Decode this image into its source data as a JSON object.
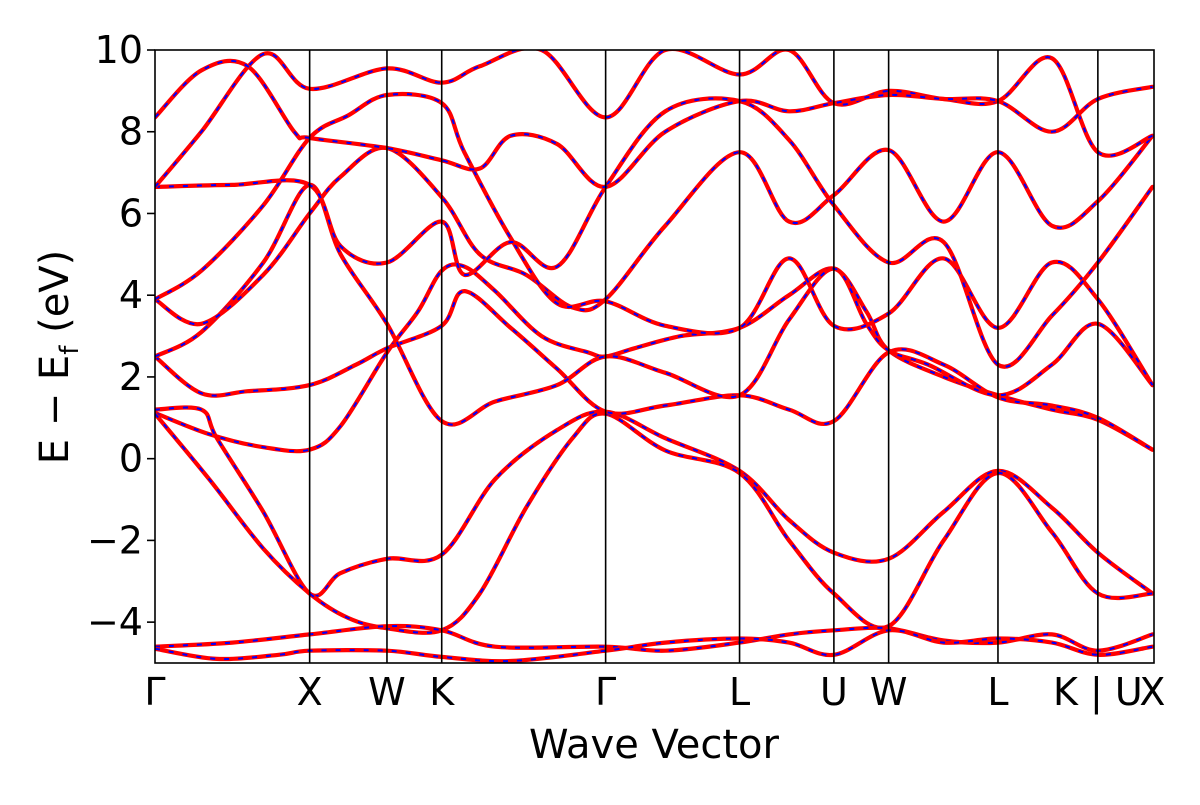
{
  "chart_data": {
    "type": "line",
    "title": "",
    "xlabel": "Wave Vector",
    "ylabel": "E − E",
    "ylabel_sub": "f",
    "ylabel_unit": " (eV)",
    "ylim": [
      -5,
      10
    ],
    "yticks": [
      -4,
      -2,
      0,
      2,
      4,
      6,
      8,
      10
    ],
    "ytick_labels": [
      "−4",
      "−2",
      "0",
      "2",
      "4",
      "6",
      "8",
      "10"
    ],
    "xlim": [
      0,
      6.46
    ],
    "kpoints": [
      {
        "label": "Γ",
        "x": 0.0
      },
      {
        "label": "X",
        "x": 1.0
      },
      {
        "label": "W",
        "x": 1.5
      },
      {
        "label": "K",
        "x": 1.854
      },
      {
        "label": "Γ",
        "x": 2.914
      },
      {
        "label": "L",
        "x": 3.78
      },
      {
        "label": "U",
        "x": 4.39
      },
      {
        "label": "W",
        "x": 4.744
      },
      {
        "label": "L",
        "x": 5.451
      },
      {
        "label": "K | U",
        "x": 6.097
      },
      {
        "label": "X",
        "x": 6.45
      }
    ],
    "colors": {
      "band": "#ff0000",
      "overlay": "#0000ff",
      "vline": "#000000"
    },
    "series": [
      {
        "values": [
          [
            0,
            1.12
          ],
          [
            0.35,
            0.6
          ],
          [
            0.7,
            0.28
          ],
          [
            1.0,
            0.22
          ],
          [
            1.2,
            0.8
          ],
          [
            1.5,
            2.6
          ],
          [
            1.7,
            3.6
          ],
          [
            1.854,
            4.6
          ],
          [
            2.0,
            4.7
          ],
          [
            2.2,
            4.1
          ],
          [
            2.5,
            3.0
          ],
          [
            2.8,
            2.6
          ],
          [
            2.914,
            2.5
          ],
          [
            3.1,
            2.7
          ],
          [
            3.4,
            3.0
          ],
          [
            3.78,
            3.2
          ],
          [
            4.1,
            4.0
          ],
          [
            4.39,
            4.65
          ],
          [
            4.6,
            3.6
          ],
          [
            4.744,
            2.65
          ],
          [
            5.1,
            2.0
          ],
          [
            5.451,
            1.55
          ],
          [
            5.8,
            1.2
          ],
          [
            6.097,
            0.95
          ],
          [
            6.45,
            0.22
          ]
        ]
      },
      {
        "values": [
          [
            0,
            1.2
          ],
          [
            0.3,
            1.2
          ],
          [
            0.4,
            0.5
          ],
          [
            0.7,
            -1.3
          ],
          [
            1.0,
            -3.3
          ],
          [
            1.2,
            -2.8
          ],
          [
            1.5,
            -2.45
          ],
          [
            1.854,
            -2.35
          ],
          [
            2.2,
            -0.5
          ],
          [
            2.6,
            0.7
          ],
          [
            2.914,
            1.15
          ],
          [
            3.3,
            0.5
          ],
          [
            3.78,
            -0.3
          ],
          [
            4.1,
            -1.5
          ],
          [
            4.39,
            -2.3
          ],
          [
            4.744,
            -2.45
          ],
          [
            5.1,
            -1.3
          ],
          [
            5.451,
            -0.3
          ],
          [
            5.8,
            -1.2
          ],
          [
            6.097,
            -2.3
          ],
          [
            6.45,
            -3.3
          ]
        ]
      },
      {
        "values": [
          [
            0,
            1.1
          ],
          [
            0.35,
            -0.5
          ],
          [
            0.7,
            -2.2
          ],
          [
            1.0,
            -3.3
          ],
          [
            1.25,
            -3.9
          ],
          [
            1.5,
            -4.15
          ],
          [
            1.854,
            -4.2
          ],
          [
            2.1,
            -3.3
          ],
          [
            2.4,
            -1.2
          ],
          [
            2.7,
            0.5
          ],
          [
            2.914,
            1.1
          ],
          [
            3.3,
            0.2
          ],
          [
            3.78,
            -0.35
          ],
          [
            4.1,
            -2.0
          ],
          [
            4.39,
            -3.3
          ],
          [
            4.744,
            -4.1
          ],
          [
            5.1,
            -2.0
          ],
          [
            5.451,
            -0.35
          ],
          [
            5.8,
            -1.8
          ],
          [
            6.097,
            -3.3
          ],
          [
            6.45,
            -3.3
          ]
        ]
      },
      {
        "values": [
          [
            0,
            2.5
          ],
          [
            0.3,
            1.6
          ],
          [
            0.6,
            1.65
          ],
          [
            1.0,
            1.8
          ],
          [
            1.3,
            2.3
          ],
          [
            1.5,
            2.7
          ],
          [
            1.854,
            3.25
          ],
          [
            2.0,
            4.1
          ],
          [
            2.3,
            3.2
          ],
          [
            2.6,
            2.2
          ],
          [
            2.914,
            1.15
          ],
          [
            3.3,
            1.3
          ],
          [
            3.78,
            1.55
          ],
          [
            4.1,
            1.2
          ],
          [
            4.39,
            0.92
          ],
          [
            4.744,
            2.6
          ],
          [
            5.1,
            2.3
          ],
          [
            5.451,
            1.5
          ],
          [
            5.8,
            1.3
          ],
          [
            6.097,
            1.0
          ],
          [
            6.45,
            0.22
          ]
        ]
      },
      {
        "values": [
          [
            0,
            2.5
          ],
          [
            0.3,
            3.1
          ],
          [
            0.7,
            4.8
          ],
          [
            1.0,
            6.7
          ],
          [
            1.2,
            5.0
          ],
          [
            1.5,
            3.3
          ],
          [
            1.854,
            0.92
          ],
          [
            2.2,
            1.4
          ],
          [
            2.6,
            1.8
          ],
          [
            2.914,
            2.5
          ],
          [
            3.3,
            2.1
          ],
          [
            3.78,
            1.55
          ],
          [
            4.1,
            3.4
          ],
          [
            4.39,
            4.65
          ],
          [
            4.6,
            3.3
          ],
          [
            4.744,
            2.65
          ],
          [
            5.0,
            2.3
          ],
          [
            5.451,
            1.55
          ],
          [
            5.8,
            2.3
          ],
          [
            6.097,
            3.3
          ],
          [
            6.45,
            1.8
          ]
        ]
      },
      {
        "values": [
          [
            0,
            3.9
          ],
          [
            0.3,
            3.3
          ],
          [
            0.7,
            4.5
          ],
          [
            1.0,
            6.0
          ],
          [
            1.2,
            6.9
          ],
          [
            1.5,
            7.6
          ],
          [
            1.854,
            6.4
          ],
          [
            2.1,
            5.0
          ],
          [
            2.4,
            4.5
          ],
          [
            2.7,
            3.7
          ],
          [
            2.914,
            3.9
          ],
          [
            3.3,
            5.7
          ],
          [
            3.78,
            7.5
          ],
          [
            4.1,
            5.8
          ],
          [
            4.39,
            6.45
          ],
          [
            4.744,
            7.55
          ],
          [
            5.1,
            5.8
          ],
          [
            5.451,
            7.5
          ],
          [
            5.8,
            5.7
          ],
          [
            6.097,
            6.3
          ],
          [
            6.45,
            7.9
          ]
        ]
      },
      {
        "values": [
          [
            0,
            3.9
          ],
          [
            0.3,
            4.6
          ],
          [
            0.7,
            6.2
          ],
          [
            1.0,
            7.85
          ],
          [
            1.25,
            8.4
          ],
          [
            1.5,
            8.9
          ],
          [
            1.854,
            8.7
          ],
          [
            2.0,
            7.5
          ],
          [
            2.3,
            5.4
          ],
          [
            2.6,
            3.8
          ],
          [
            2.914,
            3.85
          ],
          [
            3.3,
            3.25
          ],
          [
            3.78,
            3.2
          ],
          [
            4.1,
            4.9
          ],
          [
            4.39,
            3.25
          ],
          [
            4.744,
            3.55
          ],
          [
            5.1,
            4.9
          ],
          [
            5.451,
            3.2
          ],
          [
            5.8,
            4.8
          ],
          [
            6.097,
            3.9
          ],
          [
            6.45,
            1.8
          ]
        ]
      },
      {
        "values": [
          [
            0,
            6.65
          ],
          [
            0.5,
            6.7
          ],
          [
            1.0,
            6.7
          ],
          [
            1.2,
            5.2
          ],
          [
            1.5,
            4.8
          ],
          [
            1.854,
            5.8
          ],
          [
            2.0,
            4.5
          ],
          [
            2.3,
            5.3
          ],
          [
            2.6,
            4.7
          ],
          [
            2.914,
            6.65
          ],
          [
            3.3,
            8.5
          ],
          [
            3.78,
            8.75
          ],
          [
            4.1,
            7.8
          ],
          [
            4.39,
            6.2
          ],
          [
            4.744,
            4.8
          ],
          [
            5.1,
            5.3
          ],
          [
            5.451,
            2.3
          ],
          [
            5.8,
            3.5
          ],
          [
            6.097,
            4.8
          ],
          [
            6.45,
            6.65
          ]
        ]
      },
      {
        "values": [
          [
            0,
            6.65
          ],
          [
            0.3,
            8.0
          ],
          [
            0.7,
            9.9
          ],
          [
            1.0,
            9.05
          ],
          [
            1.5,
            9.55
          ],
          [
            1.854,
            9.2
          ],
          [
            2.1,
            9.6
          ],
          [
            2.5,
            10.0
          ],
          [
            2.914,
            8.35
          ],
          [
            3.3,
            10.0
          ],
          [
            3.78,
            9.4
          ],
          [
            4.1,
            10.0
          ],
          [
            4.39,
            8.7
          ],
          [
            4.744,
            9.0
          ],
          [
            5.1,
            8.8
          ],
          [
            5.451,
            8.75
          ],
          [
            5.8,
            9.8
          ],
          [
            6.097,
            7.5
          ],
          [
            6.45,
            7.9
          ]
        ]
      },
      {
        "values": [
          [
            0,
            8.35
          ],
          [
            0.3,
            9.5
          ],
          [
            0.6,
            9.6
          ],
          [
            0.9,
            8.0
          ],
          [
            1.0,
            7.85
          ],
          [
            1.5,
            7.6
          ],
          [
            1.854,
            7.3
          ],
          [
            2.1,
            7.1
          ],
          [
            2.3,
            7.9
          ],
          [
            2.6,
            7.7
          ],
          [
            2.914,
            6.65
          ],
          [
            3.3,
            8.0
          ],
          [
            3.78,
            8.75
          ],
          [
            4.1,
            8.5
          ],
          [
            4.39,
            8.7
          ],
          [
            4.744,
            8.9
          ],
          [
            5.1,
            8.8
          ],
          [
            5.451,
            8.75
          ],
          [
            5.8,
            8.0
          ],
          [
            6.097,
            8.8
          ],
          [
            6.45,
            9.1
          ]
        ]
      },
      {
        "values": [
          [
            0,
            -4.6
          ],
          [
            0.5,
            -4.5
          ],
          [
            1.0,
            -4.3
          ],
          [
            1.5,
            -4.1
          ],
          [
            1.854,
            -4.2
          ],
          [
            2.2,
            -4.6
          ],
          [
            2.914,
            -4.6
          ],
          [
            3.3,
            -4.7
          ],
          [
            3.78,
            -4.5
          ],
          [
            4.1,
            -4.3
          ],
          [
            4.39,
            -4.2
          ],
          [
            4.744,
            -4.15
          ],
          [
            5.1,
            -4.45
          ],
          [
            5.451,
            -4.5
          ],
          [
            5.8,
            -4.3
          ],
          [
            6.097,
            -4.7
          ],
          [
            6.45,
            -4.3
          ]
        ]
      },
      {
        "values": [
          [
            0,
            -4.65
          ],
          [
            0.4,
            -4.9
          ],
          [
            0.8,
            -4.8
          ],
          [
            1.0,
            -4.7
          ],
          [
            1.5,
            -4.7
          ],
          [
            1.854,
            -4.85
          ],
          [
            2.3,
            -4.95
          ],
          [
            2.914,
            -4.7
          ],
          [
            3.3,
            -4.5
          ],
          [
            3.78,
            -4.4
          ],
          [
            4.1,
            -4.5
          ],
          [
            4.39,
            -4.8
          ],
          [
            4.744,
            -4.2
          ],
          [
            5.1,
            -4.5
          ],
          [
            5.451,
            -4.4
          ],
          [
            5.8,
            -4.5
          ],
          [
            6.097,
            -4.8
          ],
          [
            6.45,
            -4.6
          ]
        ]
      }
    ]
  }
}
